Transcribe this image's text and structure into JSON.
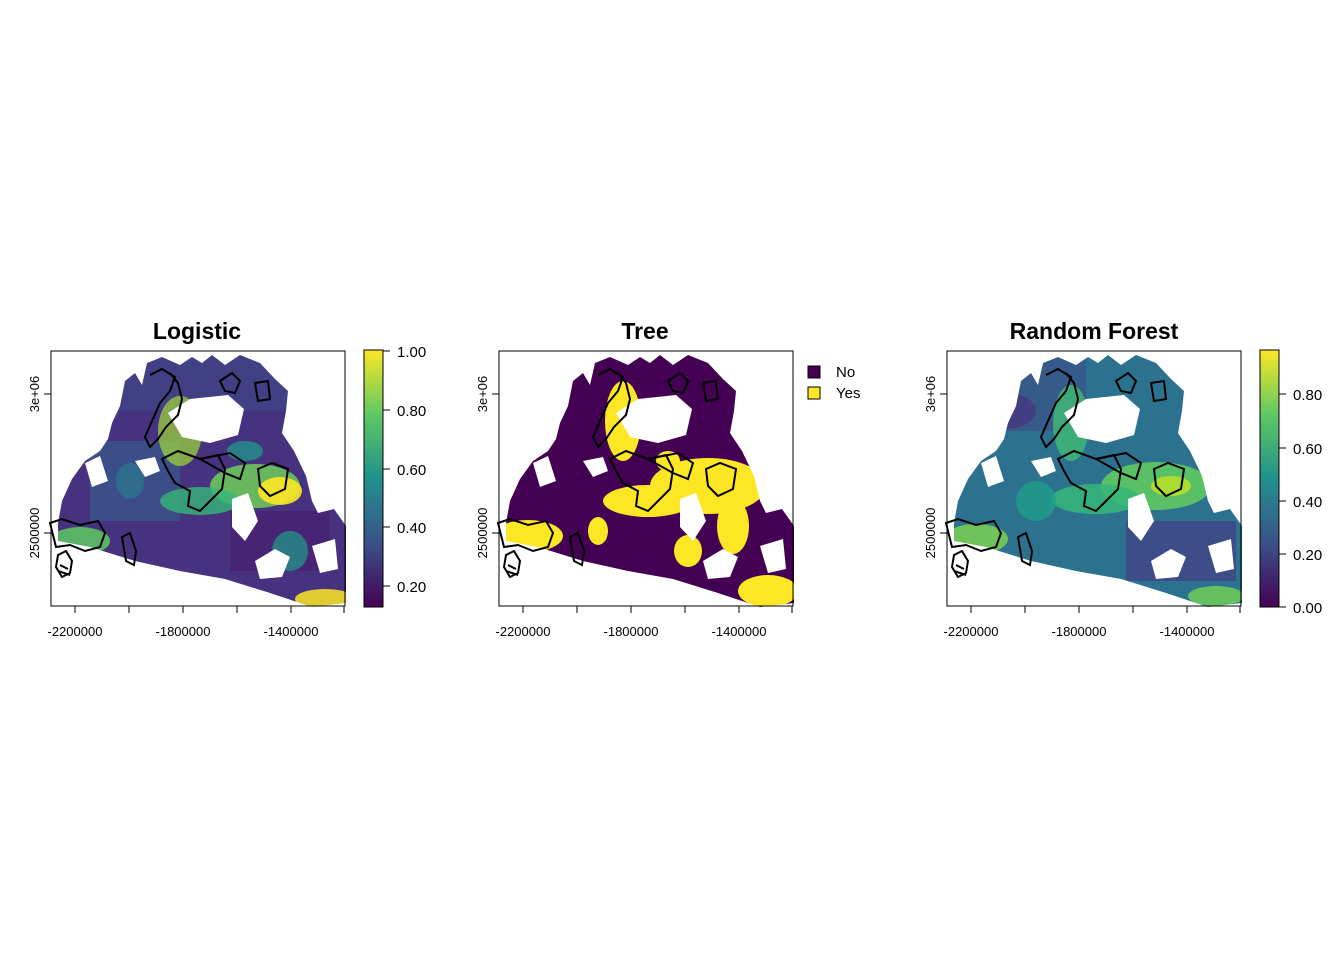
{
  "panels": [
    {
      "id": "logistic",
      "title": "Logistic",
      "x_ticks": [
        "-2200000",
        "-1800000",
        "-1400000"
      ],
      "y_ticks": [
        "3e+06",
        "2500000"
      ],
      "legend": {
        "type": "continuous",
        "ticks": [
          "1.00",
          "0.80",
          "0.60",
          "0.40",
          "0.20"
        ],
        "range": [
          0.12,
          1.0
        ]
      }
    },
    {
      "id": "tree",
      "title": "Tree",
      "x_ticks": [
        "-2200000",
        "-1800000",
        "-1400000"
      ],
      "y_ticks": [
        "3e+06",
        "2500000"
      ],
      "legend": {
        "type": "categorical",
        "items": [
          {
            "label": "No",
            "color": "#440154"
          },
          {
            "label": "Yes",
            "color": "#FDE725"
          }
        ]
      }
    },
    {
      "id": "random-forest",
      "title": "Random Forest",
      "x_ticks": [
        "-2200000",
        "-1800000",
        "-1400000"
      ],
      "y_ticks": [
        "3e+06",
        "2500000"
      ],
      "legend": {
        "type": "continuous",
        "ticks": [
          "0.80",
          "0.60",
          "0.40",
          "0.20",
          "0.00"
        ],
        "range": [
          0.0,
          0.97
        ]
      }
    }
  ],
  "colormap": [
    "#440154",
    "#3b528b",
    "#21918c",
    "#5ec962",
    "#fde725"
  ]
}
